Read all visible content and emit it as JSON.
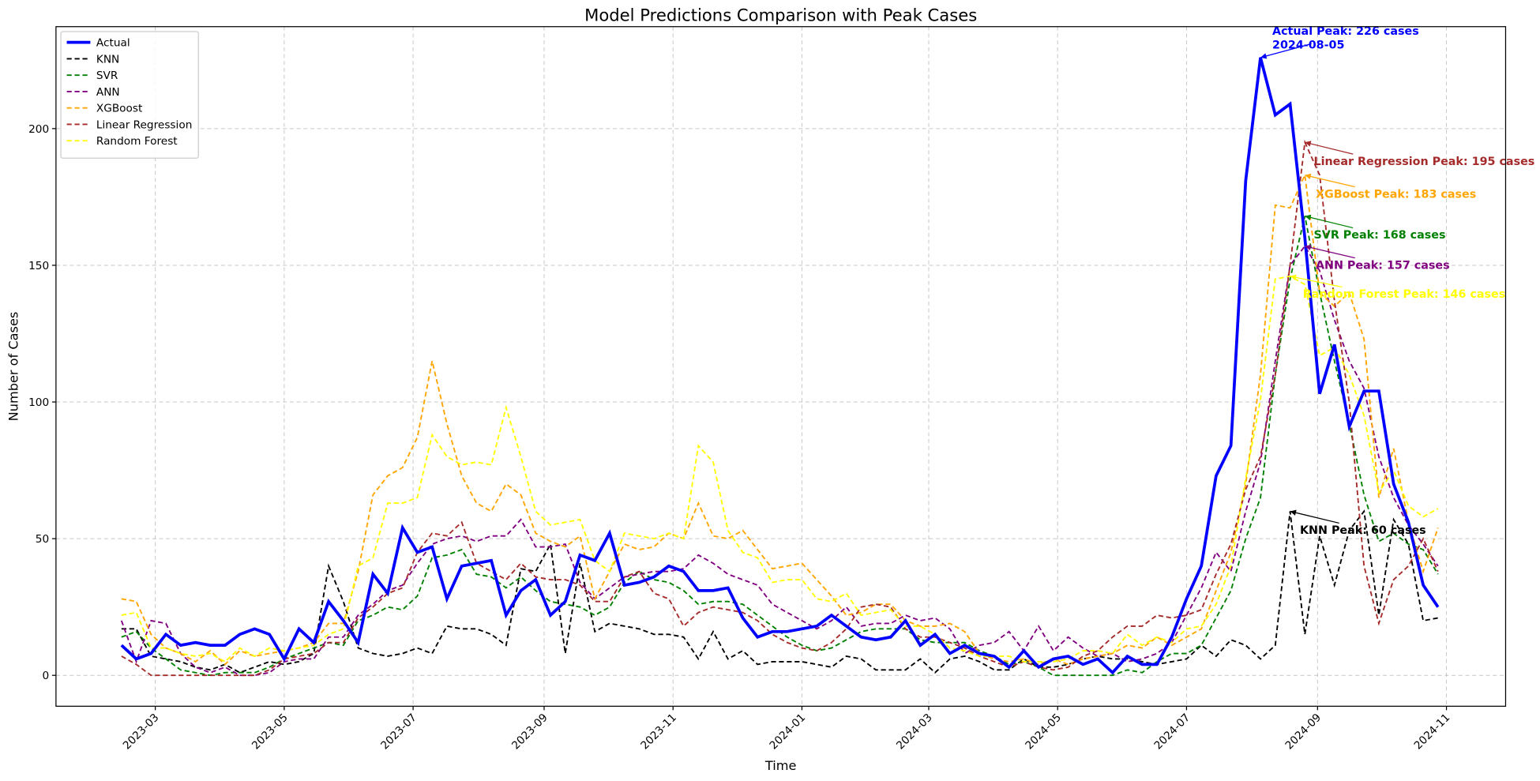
{
  "chart_data": {
    "type": "line",
    "title": "Model Predictions Comparison with Peak Cases",
    "x_label": "Time",
    "y_label": "Number of Cases",
    "x": [
      "2023-02-13",
      "2023-02-20",
      "2023-02-27",
      "2023-03-06",
      "2023-03-13",
      "2023-03-20",
      "2023-03-27",
      "2023-04-03",
      "2023-04-10",
      "2023-04-17",
      "2023-04-24",
      "2023-05-01",
      "2023-05-08",
      "2023-05-15",
      "2023-05-22",
      "2023-05-29",
      "2023-06-05",
      "2023-06-12",
      "2023-06-19",
      "2023-06-26",
      "2023-07-03",
      "2023-07-10",
      "2023-07-17",
      "2023-07-24",
      "2023-07-31",
      "2023-08-07",
      "2023-08-14",
      "2023-08-21",
      "2023-08-28",
      "2023-09-04",
      "2023-09-11",
      "2023-09-18",
      "2023-09-25",
      "2023-10-02",
      "2023-10-09",
      "2023-10-16",
      "2023-10-23",
      "2023-10-30",
      "2023-11-06",
      "2023-11-13",
      "2023-11-20",
      "2023-11-27",
      "2023-12-04",
      "2023-12-11",
      "2023-12-18",
      "2023-12-25",
      "2024-01-01",
      "2024-01-08",
      "2024-01-15",
      "2024-01-22",
      "2024-01-29",
      "2024-02-05",
      "2024-02-12",
      "2024-02-19",
      "2024-02-26",
      "2024-03-04",
      "2024-03-11",
      "2024-03-18",
      "2024-03-25",
      "2024-04-01",
      "2024-04-08",
      "2024-04-15",
      "2024-04-22",
      "2024-04-29",
      "2024-05-06",
      "2024-05-13",
      "2024-05-20",
      "2024-05-27",
      "2024-06-03",
      "2024-06-10",
      "2024-06-17",
      "2024-06-24",
      "2024-07-01",
      "2024-07-08",
      "2024-07-15",
      "2024-07-22",
      "2024-07-29",
      "2024-08-05",
      "2024-08-12",
      "2024-08-19",
      "2024-08-26",
      "2024-09-02",
      "2024-09-09",
      "2024-09-16",
      "2024-09-23",
      "2024-09-30",
      "2024-10-07",
      "2024-10-14",
      "2024-10-21",
      "2024-10-28"
    ],
    "series": [
      {
        "name": "Actual",
        "color": "#0000ff",
        "linestyle": "solid",
        "values": [
          11,
          6,
          8,
          15,
          11,
          12,
          11,
          11,
          15,
          17,
          15,
          6,
          17,
          12,
          27,
          20,
          12,
          37,
          30,
          54,
          45,
          47,
          28,
          40,
          41,
          42,
          22,
          31,
          35,
          22,
          27,
          44,
          42,
          52,
          33,
          34,
          36,
          40,
          38,
          31,
          31,
          32,
          21,
          14,
          16,
          16,
          17,
          18,
          22,
          18,
          14,
          13,
          14,
          20,
          11,
          15,
          8,
          11,
          8,
          7,
          3,
          9,
          3,
          6,
          7,
          4,
          6,
          1,
          7,
          4,
          4,
          14,
          28,
          40,
          73,
          84,
          181,
          226,
          205,
          209,
          160,
          103,
          121,
          91,
          104,
          104,
          70,
          56,
          33,
          25
        ]
      },
      {
        "name": "KNN",
        "color": "#000000",
        "linestyle": "dashed",
        "values": [
          17,
          17,
          7,
          6,
          5,
          3,
          2,
          4,
          1,
          3,
          5,
          4,
          5,
          8,
          40,
          27,
          10,
          8,
          7,
          8,
          10,
          8,
          18,
          17,
          17,
          15,
          11,
          39,
          38,
          48,
          8,
          41,
          16,
          19,
          18,
          17,
          15,
          15,
          14,
          6,
          16,
          6,
          9,
          4,
          5,
          5,
          5,
          4,
          3,
          7,
          6,
          2,
          2,
          2,
          6,
          1,
          6,
          7,
          5,
          2,
          2,
          6,
          3,
          3,
          4,
          6,
          7,
          6,
          6,
          5,
          4,
          5,
          6,
          11,
          7,
          13,
          11,
          6,
          11,
          60,
          15,
          51,
          33,
          53,
          60,
          22,
          57,
          48,
          20,
          21
        ]
      },
      {
        "name": "SVR",
        "color": "#008000",
        "linestyle": "dashed",
        "values": [
          14,
          16,
          10,
          6,
          2,
          1,
          0,
          1,
          1,
          1,
          3,
          6,
          8,
          10,
          12,
          11,
          20,
          22,
          25,
          24,
          29,
          43,
          44,
          46,
          37,
          36,
          32,
          36,
          31,
          27,
          26,
          25,
          22,
          25,
          34,
          38,
          35,
          34,
          31,
          26,
          27,
          27,
          26,
          22,
          18,
          14,
          11,
          9,
          10,
          13,
          16,
          17,
          17,
          17,
          13,
          12,
          12,
          12,
          9,
          7,
          4,
          5,
          3,
          0,
          0,
          0,
          0,
          0,
          2,
          1,
          5,
          8,
          8,
          11,
          21,
          31,
          50,
          65,
          110,
          145,
          168,
          140,
          115,
          92,
          66,
          49,
          52,
          48,
          46,
          37
        ]
      },
      {
        "name": "ANN",
        "color": "#800080",
        "linestyle": "dashed",
        "values": [
          20,
          5,
          20,
          19,
          8,
          3,
          1,
          3,
          0,
          0,
          1,
          5,
          6,
          6,
          14,
          14,
          22,
          26,
          31,
          33,
          41,
          48,
          50,
          51,
          49,
          51,
          51,
          57,
          47,
          47,
          48,
          34,
          28,
          32,
          36,
          37,
          38,
          38,
          39,
          44,
          41,
          37,
          35,
          33,
          26,
          23,
          20,
          17,
          20,
          25,
          18,
          19,
          19,
          22,
          20,
          21,
          17,
          8,
          11,
          12,
          16,
          9,
          18,
          9,
          14,
          10,
          7,
          8,
          5,
          6,
          8,
          12,
          22,
          32,
          45,
          38,
          60,
          78,
          115,
          150,
          157,
          148,
          130,
          115,
          105,
          80,
          65,
          55,
          48,
          40
        ]
      },
      {
        "name": "XGBoost",
        "color": "#ffa500",
        "linestyle": "dashed",
        "values": [
          28,
          27,
          15,
          10,
          8,
          5,
          9,
          4,
          9,
          7,
          8,
          9,
          10,
          12,
          19,
          19,
          38,
          66,
          73,
          76,
          87,
          115,
          92,
          73,
          63,
          60,
          70,
          66,
          52,
          49,
          47,
          51,
          28,
          38,
          48,
          46,
          47,
          52,
          50,
          63,
          51,
          50,
          53,
          46,
          39,
          40,
          41,
          35,
          29,
          22,
          23,
          26,
          26,
          20,
          18,
          18,
          19,
          16,
          8,
          6,
          5,
          6,
          4,
          6,
          4,
          6,
          7,
          8,
          11,
          10,
          14,
          11,
          14,
          17,
          31,
          45,
          70,
          110,
          172,
          171,
          183,
          140,
          135,
          140,
          123,
          65,
          83,
          56,
          38,
          54
        ]
      },
      {
        "name": "Linear Regression",
        "color": "#a52a2a",
        "linestyle": "dashed",
        "values": [
          7,
          4,
          0,
          0,
          0,
          0,
          0,
          0,
          0,
          0,
          2,
          6,
          7,
          8,
          12,
          12,
          21,
          25,
          30,
          32,
          45,
          52,
          51,
          56,
          41,
          38,
          35,
          41,
          36,
          35,
          35,
          33,
          27,
          27,
          36,
          38,
          30,
          28,
          18,
          23,
          25,
          24,
          23,
          20,
          15,
          12,
          10,
          9,
          12,
          17,
          25,
          26,
          25,
          17,
          14,
          14,
          12,
          10,
          7,
          5,
          3,
          5,
          3,
          2,
          3,
          7,
          9,
          14,
          18,
          18,
          22,
          21,
          22,
          24,
          37,
          48,
          68,
          80,
          110,
          150,
          195,
          183,
          137,
          100,
          40,
          19,
          35,
          40,
          50,
          38
        ]
      },
      {
        "name": "Random Forest",
        "color": "#ffff00",
        "linestyle": "dashed",
        "values": [
          22,
          23,
          10,
          10,
          8,
          7,
          8,
          5,
          10,
          7,
          10,
          9,
          10,
          11,
          15,
          17,
          40,
          43,
          63,
          63,
          65,
          88,
          80,
          77,
          78,
          77,
          98,
          80,
          60,
          55,
          56,
          57,
          42,
          38,
          52,
          51,
          50,
          52,
          50,
          84,
          78,
          53,
          45,
          43,
          34,
          35,
          35,
          28,
          27,
          30,
          22,
          23,
          24,
          18,
          18,
          15,
          10,
          9,
          7,
          7,
          7,
          5,
          5,
          5,
          6,
          9,
          9,
          8,
          15,
          11,
          14,
          12,
          17,
          18,
          26,
          40,
          72,
          101,
          145,
          146,
          143,
          117,
          120,
          110,
          95,
          67,
          75,
          62,
          58,
          61
        ]
      }
    ],
    "annotations": [
      {
        "lines": [
          "Actual Peak: 226 cases",
          "2024-08-05"
        ]
      },
      {
        "lines": [
          "KNN Peak: 60 cases"
        ]
      },
      {
        "lines": [
          "SVR Peak: 168 cases"
        ]
      },
      {
        "lines": [
          "ANN Peak: 157 cases"
        ]
      },
      {
        "lines": [
          "XGBoost Peak: 183 cases"
        ]
      },
      {
        "lines": [
          "Linear Regression Peak: 195 cases"
        ]
      },
      {
        "lines": [
          "Random Forest Peak: 146 cases"
        ]
      }
    ],
    "xlim": [
      "2023-01-13",
      "2024-11-29"
    ],
    "xticks": [
      {
        "value": "2023-03-01",
        "label": "2023-03"
      },
      {
        "value": "2023-05-01",
        "label": "2023-05"
      },
      {
        "value": "2023-07-01",
        "label": "2023-07"
      },
      {
        "value": "2023-09-01",
        "label": "2023-09"
      },
      {
        "value": "2023-11-01",
        "label": "2023-11"
      },
      {
        "value": "2024-01-01",
        "label": "2024-01"
      },
      {
        "value": "2024-03-01",
        "label": "2024-03"
      },
      {
        "value": "2024-05-01",
        "label": "2024-05"
      },
      {
        "value": "2024-07-01",
        "label": "2024-07"
      },
      {
        "value": "2024-09-01",
        "label": "2024-09"
      },
      {
        "value": "2024-11-01",
        "label": "2024-11"
      }
    ],
    "ylim": [
      -11.3,
      237.3
    ],
    "yticks": [
      0,
      50,
      100,
      150,
      200
    ],
    "grid": true,
    "legend": "upper left"
  }
}
